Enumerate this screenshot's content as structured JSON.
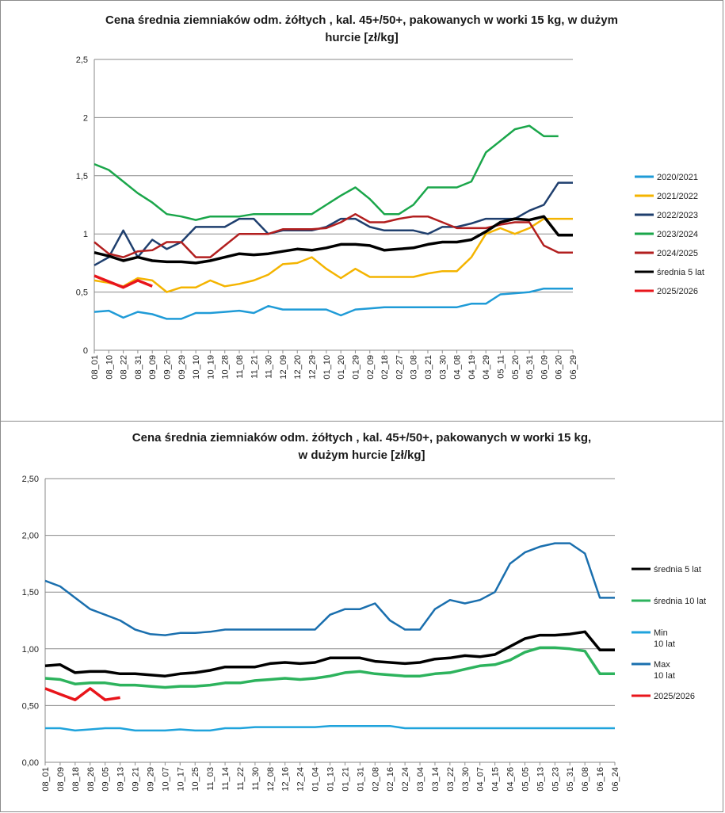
{
  "charts": [
    {
      "title_line1": "Cena średnia ziemniaków odm. żółtych , kal. 45+/50+, pakowanych w worki 15 kg, w dużym",
      "title_line2": "hurcie [zł/kg]",
      "y_ticks": [
        "0",
        "0,5",
        "1",
        "1,5",
        "2",
        "2,5"
      ],
      "x_ticks": [
        "08_01",
        "08_10",
        "08_22",
        "08_31",
        "09_09",
        "09_20",
        "09_29",
        "10_10",
        "10_19",
        "10_28",
        "11_08",
        "11_21",
        "11_30",
        "12_09",
        "12_20",
        "12_29",
        "01_10",
        "01_20",
        "01_29",
        "02_09",
        "02_18",
        "02_27",
        "03_08",
        "03_21",
        "03_30",
        "04_08",
        "04_19",
        "04_29",
        "05_11",
        "05_20",
        "05_31",
        "06_09",
        "06_20",
        "06_29"
      ],
      "legend": [
        "2020/2021",
        "2021/2022",
        "2022/2023",
        "2023/2024",
        "2024/2025",
        "średnia 5 lat",
        "2025/2026"
      ]
    },
    {
      "title_line1": "Cena średnia ziemniaków odm. żółtych , kal. 45+/50+, pakowanych w worki 15 kg,",
      "title_line2": "w dużym hurcie [zł/kg]",
      "y_ticks": [
        "0,00",
        "0,50",
        "1,00",
        "1,50",
        "2,00",
        "2,50"
      ],
      "x_ticks": [
        "08_01",
        "08_09",
        "08_18",
        "08_26",
        "09_05",
        "09_13",
        "09_21",
        "09_29",
        "10_07",
        "10_17",
        "10_25",
        "11_03",
        "11_14",
        "11_22",
        "11_30",
        "12_08",
        "12_16",
        "12_24",
        "01_04",
        "01_13",
        "01_21",
        "01_31",
        "02_08",
        "02_16",
        "02_24",
        "03_04",
        "03_14",
        "03_22",
        "03_30",
        "04_07",
        "04_15",
        "04_26",
        "05_05",
        "05_13",
        "05_23",
        "05_31",
        "06_08",
        "06_16",
        "06_24"
      ],
      "legend": [
        {
          "line1": "średnia 5 lat",
          "line2": ""
        },
        {
          "line1": "średnia 10 lat",
          "line2": ""
        },
        {
          "line1": "Min",
          "line2": "10 lat"
        },
        {
          "line1": "Max",
          "line2": "10 lat"
        },
        {
          "line1": "2025/2026",
          "line2": ""
        }
      ]
    }
  ],
  "chart_data": [
    {
      "type": "line",
      "title": "Cena średnia ziemniaków odm. żółtych , kal. 45+/50+, pakowanych w worki 15 kg, w dużym hurcie [zł/kg]",
      "ylim": [
        0,
        2.5
      ],
      "y_ticks": [
        0,
        0.5,
        1,
        1.5,
        2,
        2.5
      ],
      "grid": "horizontal",
      "legend_position": "right",
      "x_labels": [
        "08_01",
        "08_10",
        "08_22",
        "08_31",
        "09_09",
        "09_20",
        "09_29",
        "10_10",
        "10_19",
        "10_28",
        "11_08",
        "11_21",
        "11_30",
        "12_09",
        "12_20",
        "12_29",
        "01_10",
        "01_20",
        "01_29",
        "02_09",
        "02_18",
        "02_27",
        "03_08",
        "03_21",
        "03_30",
        "04_08",
        "04_19",
        "04_29",
        "05_11",
        "05_20",
        "05_31",
        "06_09",
        "06_20",
        "06_29"
      ],
      "series": [
        {
          "name": "2020/2021",
          "color": "#1f9bd7",
          "values": [
            0.33,
            0.34,
            0.28,
            0.33,
            0.31,
            0.27,
            0.27,
            0.32,
            0.32,
            0.33,
            0.34,
            0.32,
            0.38,
            0.35,
            0.35,
            0.35,
            0.35,
            0.3,
            0.35,
            0.36,
            0.37,
            0.37,
            0.37,
            0.37,
            0.37,
            0.37,
            0.4,
            0.4,
            0.48,
            0.49,
            0.5,
            0.53,
            0.53,
            0.53
          ]
        },
        {
          "name": "2021/2022",
          "color": "#f4b400",
          "values": [
            0.6,
            0.58,
            0.55,
            0.62,
            0.6,
            0.5,
            0.54,
            0.54,
            0.6,
            0.55,
            0.57,
            0.6,
            0.65,
            0.74,
            0.75,
            0.8,
            0.7,
            0.62,
            0.7,
            0.63,
            0.63,
            0.63,
            0.63,
            0.66,
            0.68,
            0.68,
            0.8,
            1.0,
            1.05,
            1.0,
            1.05,
            1.13,
            1.13,
            1.13
          ]
        },
        {
          "name": "2022/2023",
          "color": "#1f3f6e",
          "values": [
            0.73,
            0.8,
            1.03,
            0.8,
            0.95,
            0.87,
            0.93,
            1.06,
            1.06,
            1.06,
            1.13,
            1.13,
            1.0,
            1.03,
            1.03,
            1.03,
            1.06,
            1.13,
            1.13,
            1.06,
            1.03,
            1.03,
            1.03,
            1.0,
            1.06,
            1.06,
            1.09,
            1.13,
            1.13,
            1.13,
            1.2,
            1.25,
            1.44,
            1.44
          ]
        },
        {
          "name": "2023/2024",
          "color": "#1aa64a",
          "values": [
            1.6,
            1.55,
            1.45,
            1.35,
            1.27,
            1.17,
            1.15,
            1.12,
            1.15,
            1.15,
            1.15,
            1.17,
            1.17,
            1.17,
            1.17,
            1.17,
            1.25,
            1.33,
            1.4,
            1.3,
            1.17,
            1.17,
            1.25,
            1.4,
            1.4,
            1.4,
            1.45,
            1.7,
            1.8,
            1.9,
            1.93,
            1.84,
            1.84,
            null
          ]
        },
        {
          "name": "2024/2025",
          "color": "#b21f1f",
          "values": [
            0.93,
            0.83,
            0.8,
            0.85,
            0.86,
            0.93,
            0.93,
            0.8,
            0.8,
            0.9,
            1.0,
            1.0,
            1.0,
            1.04,
            1.04,
            1.04,
            1.05,
            1.1,
            1.17,
            1.1,
            1.1,
            1.13,
            1.15,
            1.15,
            1.1,
            1.05,
            1.05,
            1.05,
            1.08,
            1.1,
            1.1,
            0.9,
            0.84,
            0.84
          ]
        },
        {
          "name": "średnia 5 lat",
          "color": "#000000",
          "values": [
            0.84,
            0.81,
            0.77,
            0.8,
            0.77,
            0.76,
            0.76,
            0.75,
            0.77,
            0.8,
            0.83,
            0.82,
            0.83,
            0.85,
            0.87,
            0.86,
            0.88,
            0.91,
            0.91,
            0.9,
            0.86,
            0.87,
            0.88,
            0.91,
            0.93,
            0.93,
            0.95,
            1.02,
            1.1,
            1.13,
            1.12,
            1.15,
            0.99,
            0.99
          ]
        },
        {
          "name": "2025/2026",
          "color": "#e8151b",
          "values": [
            0.64,
            0.59,
            0.54,
            0.6,
            0.55,
            null,
            null,
            null,
            null,
            null,
            null,
            null,
            null,
            null,
            null,
            null,
            null,
            null,
            null,
            null,
            null,
            null,
            null,
            null,
            null,
            null,
            null,
            null,
            null,
            null,
            null,
            null,
            null,
            null
          ]
        }
      ]
    },
    {
      "type": "line",
      "title": "Cena średnia ziemniaków odm. żółtych , kal. 45+/50+, pakowanych w worki 15 kg, w dużym hurcie [zł/kg]",
      "ylim": [
        0,
        2.5
      ],
      "y_ticks": [
        0,
        0.5,
        1,
        1.5,
        2,
        2.5
      ],
      "grid": "horizontal",
      "legend_position": "right",
      "x_labels": [
        "08_01",
        "08_09",
        "08_18",
        "08_26",
        "09_05",
        "09_13",
        "09_21",
        "09_29",
        "10_07",
        "10_17",
        "10_25",
        "11_03",
        "11_14",
        "11_22",
        "11_30",
        "12_08",
        "12_16",
        "12_24",
        "01_04",
        "01_13",
        "01_21",
        "01_31",
        "02_08",
        "02_16",
        "02_24",
        "03_04",
        "03_14",
        "03_22",
        "03_30",
        "04_07",
        "04_15",
        "04_26",
        "05_05",
        "05_13",
        "05_23",
        "05_31",
        "06_08",
        "06_16",
        "06_24"
      ],
      "series": [
        {
          "name": "średnia 5 lat",
          "color": "#000000",
          "values": [
            0.85,
            0.86,
            0.79,
            0.8,
            0.8,
            0.78,
            0.78,
            0.77,
            0.76,
            0.78,
            0.79,
            0.81,
            0.84,
            0.84,
            0.84,
            0.87,
            0.88,
            0.87,
            0.88,
            0.92,
            0.92,
            0.92,
            0.89,
            0.88,
            0.87,
            0.88,
            0.91,
            0.92,
            0.94,
            0.93,
            0.95,
            1.02,
            1.09,
            1.12,
            1.12,
            1.13,
            1.15,
            0.99,
            0.99
          ]
        },
        {
          "name": "średnia 10 lat",
          "color": "#2db35d",
          "values": [
            0.74,
            0.73,
            0.69,
            0.7,
            0.7,
            0.68,
            0.68,
            0.67,
            0.66,
            0.67,
            0.67,
            0.68,
            0.7,
            0.7,
            0.72,
            0.73,
            0.74,
            0.73,
            0.74,
            0.76,
            0.79,
            0.8,
            0.78,
            0.77,
            0.76,
            0.76,
            0.78,
            0.79,
            0.82,
            0.85,
            0.86,
            0.9,
            0.97,
            1.01,
            1.01,
            1.0,
            0.98,
            0.78,
            0.78
          ]
        },
        {
          "name": "Min 10 lat",
          "color": "#1fa3dc",
          "values": [
            0.3,
            0.3,
            0.28,
            0.29,
            0.3,
            0.3,
            0.28,
            0.28,
            0.28,
            0.29,
            0.28,
            0.28,
            0.3,
            0.3,
            0.31,
            0.31,
            0.31,
            0.31,
            0.31,
            0.32,
            0.32,
            0.32,
            0.32,
            0.32,
            0.3,
            0.3,
            0.3,
            0.3,
            0.3,
            0.3,
            0.3,
            0.3,
            0.3,
            0.3,
            0.3,
            0.3,
            0.3,
            0.3,
            0.3
          ]
        },
        {
          "name": "Max 10 lat",
          "color": "#1a6fae",
          "values": [
            1.6,
            1.55,
            1.45,
            1.35,
            1.3,
            1.25,
            1.17,
            1.13,
            1.12,
            1.14,
            1.14,
            1.15,
            1.17,
            1.17,
            1.17,
            1.17,
            1.17,
            1.17,
            1.17,
            1.3,
            1.35,
            1.35,
            1.4,
            1.25,
            1.17,
            1.17,
            1.35,
            1.43,
            1.4,
            1.43,
            1.5,
            1.75,
            1.85,
            1.9,
            1.93,
            1.93,
            1.84,
            1.45,
            1.45
          ]
        },
        {
          "name": "2025/2026",
          "color": "#e8151b",
          "values": [
            0.65,
            0.6,
            0.55,
            0.65,
            0.55,
            0.57,
            null,
            null,
            null,
            null,
            null,
            null,
            null,
            null,
            null,
            null,
            null,
            null,
            null,
            null,
            null,
            null,
            null,
            null,
            null,
            null,
            null,
            null,
            null,
            null,
            null,
            null,
            null,
            null,
            null,
            null,
            null,
            null,
            null
          ]
        }
      ]
    }
  ]
}
